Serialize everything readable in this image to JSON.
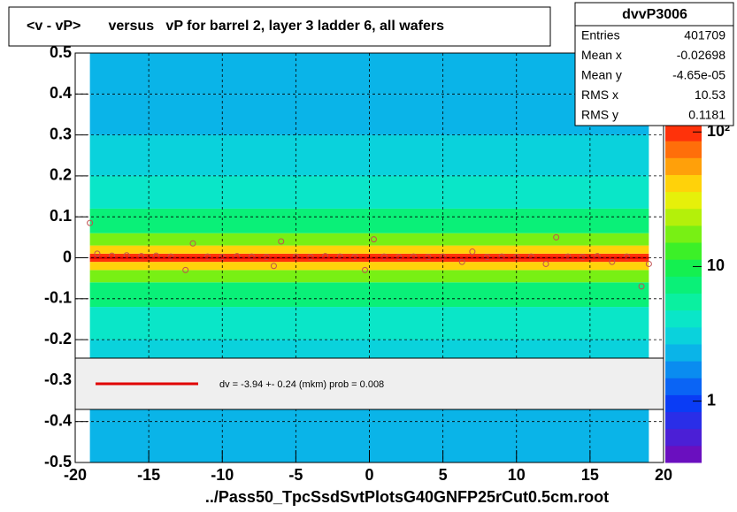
{
  "chart_data": {
    "type": "heatmap",
    "title": "<v - vP>       versus   vP for barrel 2, layer 3 ladder 6, all wafers",
    "xlabel": "../Pass50_TpcSsdSvtPlotsG40GNFP25rCut0.5cm.root",
    "xlim": [
      -20,
      20
    ],
    "ylim": [
      -0.5,
      0.5
    ],
    "xticks": [
      -20,
      -15,
      -10,
      -5,
      0,
      5,
      10,
      15,
      20
    ],
    "yticks": [
      -0.5,
      -0.4,
      -0.3,
      -0.2,
      -0.1,
      0,
      0.1,
      0.2,
      0.3,
      0.4,
      0.5
    ],
    "grid": true,
    "x_range": [
      -19,
      19
    ],
    "ybins": [
      -0.5,
      -0.4,
      -0.3,
      -0.2,
      -0.12,
      -0.06,
      -0.03,
      -0.01,
      0.01,
      0.03,
      0.06,
      0.12,
      0.2,
      0.3,
      0.4,
      0.5
    ],
    "counts": [
      2,
      2,
      3,
      4,
      7,
      18,
      40,
      100,
      40,
      18,
      7,
      4,
      3,
      2,
      2
    ],
    "zlim": [
      0.35,
      115
    ],
    "zlog": true,
    "zticks": [
      1,
      10,
      {
        "value": 100,
        "label": "10²"
      }
    ],
    "palette": [
      "#6a0fbf",
      "#4b1fd6",
      "#2a2ee8",
      "#0a3cf5",
      "#0a64f5",
      "#0a8cf0",
      "#0ab4e8",
      "#0ad2dc",
      "#0ae6c8",
      "#0af0a0",
      "#0af078",
      "#14f050",
      "#3cf028",
      "#78f014",
      "#b4f00a",
      "#e6f00a",
      "#ffd20a",
      "#ffa00a",
      "#ff6e0a",
      "#ff320a"
    ],
    "profile": {
      "x": [
        -19,
        -18.5,
        -17.5,
        -16.5,
        -15.5,
        -14.5,
        -13.5,
        -12.5,
        -12,
        -11,
        -10,
        -9,
        -8,
        -7,
        -6.5,
        -6,
        -5,
        -4,
        -3,
        -2,
        -1,
        -0.3,
        0.3,
        1,
        2,
        3,
        4,
        5,
        6.3,
        7,
        8,
        9,
        10,
        11,
        12,
        12.7,
        13.5,
        14.5,
        15.5,
        16.5,
        17.5,
        18.5,
        19
      ],
      "y": [
        0.085,
        0.01,
        0.005,
        0.006,
        0.004,
        0.005,
        0.003,
        -0.03,
        0.035,
        0.003,
        0.002,
        0.004,
        0.003,
        0.002,
        -0.02,
        0.04,
        0.003,
        0.002,
        0.004,
        0.003,
        0.002,
        -0.03,
        0.045,
        0.003,
        0.002,
        0.003,
        0.002,
        0.003,
        -0.01,
        0.015,
        0.002,
        0.003,
        0.002,
        0.003,
        -0.015,
        0.05,
        0.003,
        0.002,
        0.004,
        -0.01,
        0.003,
        -0.07,
        -0.015
      ],
      "color": "#c05050"
    },
    "fit_line": {
      "x": [
        -19,
        19
      ],
      "y": -0.000394,
      "color": "#e00000"
    },
    "fit_label": "dv =   -3.94 +-  0.24 (mkm) prob = 0.008",
    "stats": {
      "name": "dvvP3006",
      "rows": [
        [
          "Entries",
          "401709"
        ],
        [
          "Mean x",
          "-0.02698"
        ],
        [
          "Mean y",
          "-4.65e-05"
        ],
        [
          "RMS x",
          "10.53"
        ],
        [
          "RMS y",
          "0.1181"
        ]
      ]
    }
  }
}
